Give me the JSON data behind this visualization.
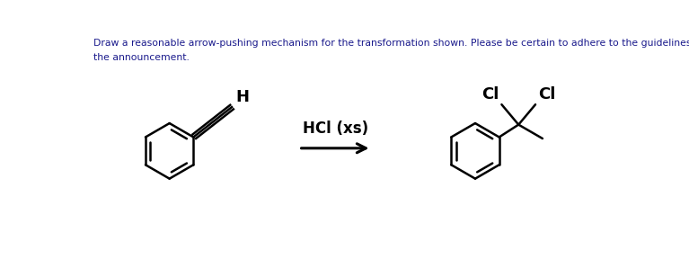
{
  "title_line1": "Draw a reasonable arrow-pushing mechanism for the transformation shown. Please be certain to adhere to the guidelines laid out in",
  "title_line2": "the announcement.",
  "title_color": "#1a1a8c",
  "title_fontsize": 7.8,
  "reagent_text": "HCl (xs)",
  "reagent_fontsize": 12,
  "H_label": "H",
  "Cl_label1": "Cl",
  "Cl_label2": "Cl",
  "lw": 1.8,
  "bg_color": "#ffffff",
  "fig_w": 7.67,
  "fig_h": 3.08,
  "dpi": 100
}
